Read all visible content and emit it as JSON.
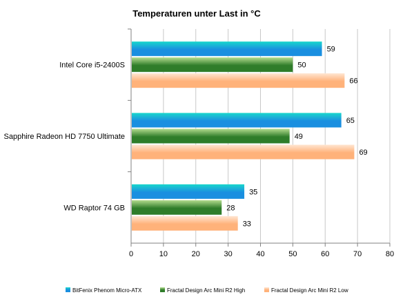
{
  "chart_data": {
    "type": "bar",
    "orientation": "horizontal",
    "title": "Temperaturen  unter Last in °C",
    "categories": [
      "Intel Core i5-2400S",
      "Sapphire Radeon HD 7750 Ultimate",
      "WD Raptor 74 GB"
    ],
    "series": [
      {
        "name": "BitFenix Phenom  Micro-ATX",
        "values": [
          59,
          65,
          35
        ],
        "color": "#1a8fe0",
        "color_top": "#19d7cc"
      },
      {
        "name": "Fractal Design Arc Mini R2 High",
        "values": [
          50,
          49,
          28
        ],
        "color": "#2f7d2a",
        "color_top": "#b4dc8f"
      },
      {
        "name": "Fractal Design Arc Mini R2 Low",
        "values": [
          66,
          69,
          33
        ],
        "color": "#ffb27a",
        "color_top": "#ffe6d2"
      }
    ],
    "xlim": [
      0,
      80
    ],
    "xticks": [
      0,
      10,
      20,
      30,
      40,
      50,
      60,
      70,
      80
    ],
    "grid": true,
    "data_labels": true,
    "legend": "bottom"
  }
}
